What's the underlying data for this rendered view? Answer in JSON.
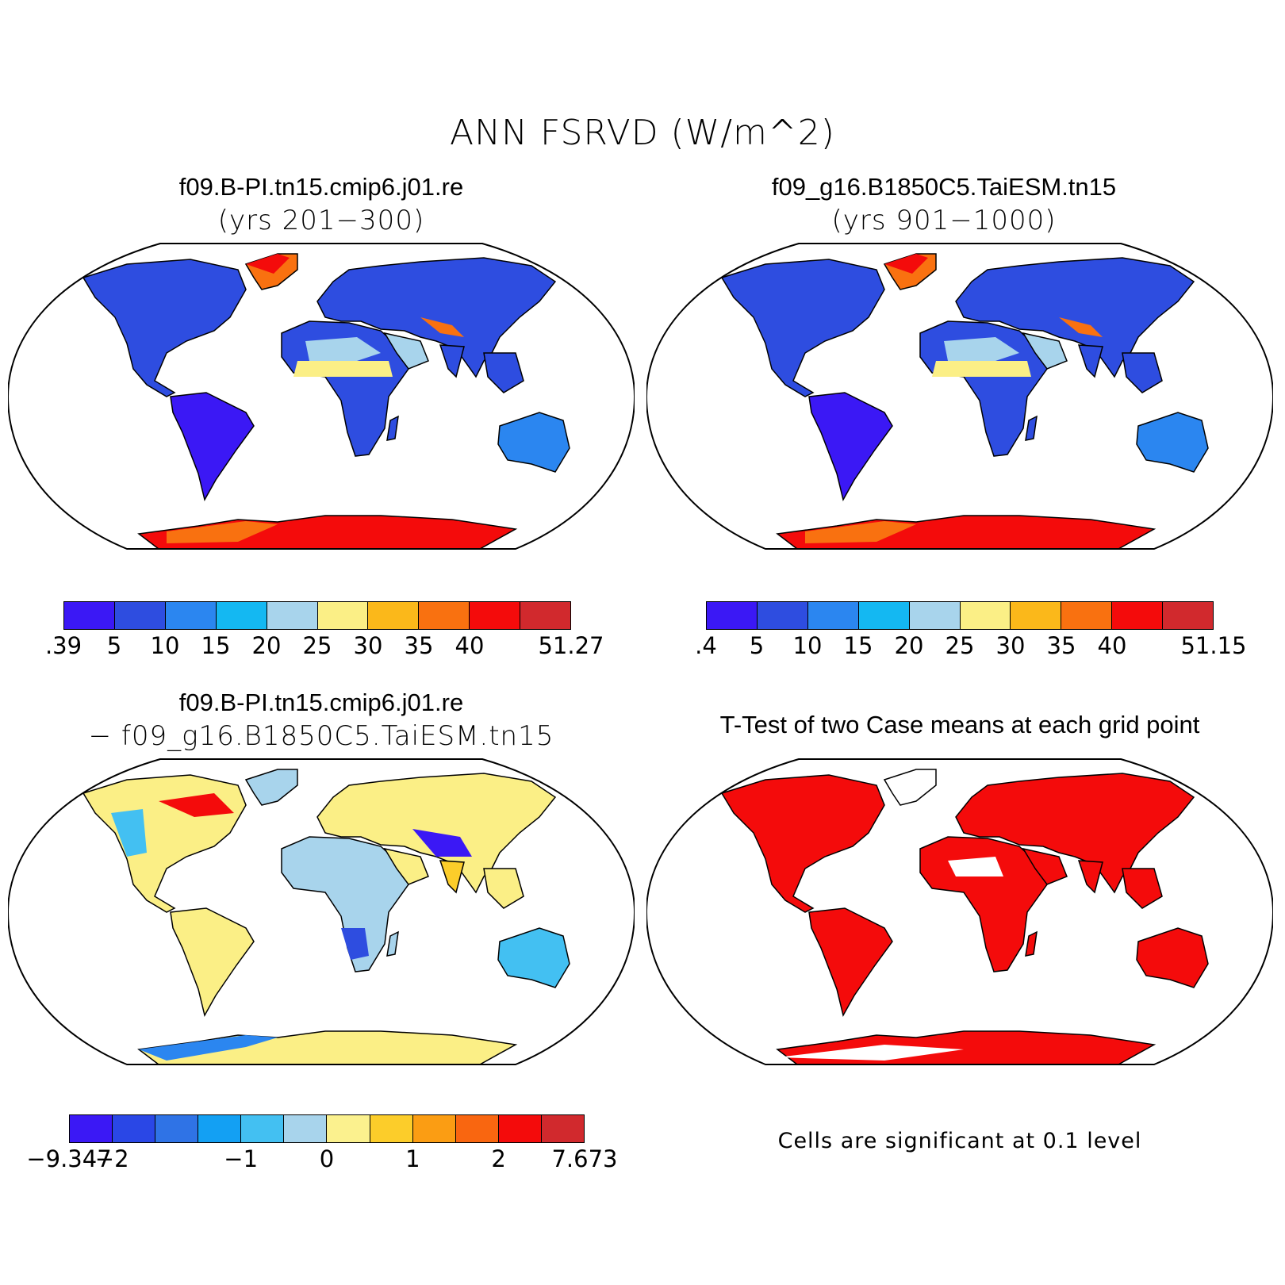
{
  "title": "ANN FSRVD (W/m^2)",
  "panels": [
    {
      "title": "f09.B-PI.tn15.cmip6.j01.re",
      "subtitle": "(yrs 201−300)"
    },
    {
      "title": "f09_g16.B1850C5.TaiESM.tn15",
      "subtitle": "(yrs 901−1000)"
    },
    {
      "title": "f09.B-PI.tn15.cmip6.j01.re",
      "subtitle": "− f09_g16.B1850C5.TaiESM.tn15"
    },
    {
      "title": "T-Test of two Case means at each grid point",
      "subtitle": ""
    }
  ],
  "note": "Cells are significant at 0.1 level",
  "colorbars": {
    "abs_colors": [
      "#3b18f5",
      "#2e4de0",
      "#2b86f0",
      "#14b8f2",
      "#a8d4ec",
      "#fbef86",
      "#fbb81a",
      "#f97110",
      "#f40b0b",
      "#d1292d"
    ],
    "diff_colors": [
      "#3b18f5",
      "#2a47e6",
      "#2f73e6",
      "#13a0f3",
      "#43c0f2",
      "#a8d4ec",
      "#fbf18e",
      "#fccd2a",
      "#fb9d13",
      "#f96610",
      "#f40b0b",
      "#d1292d"
    ],
    "case1_ticks": [
      ".39",
      "5",
      "10",
      "15",
      "20",
      "25",
      "30",
      "35",
      "40",
      "51.27"
    ],
    "case2_ticks": [
      ".4",
      "5",
      "10",
      "15",
      "20",
      "25",
      "30",
      "35",
      "40",
      "51.15"
    ],
    "diff_ticks": [
      "−9.347",
      "−2",
      "−1",
      "0",
      "1",
      "2",
      "7.673"
    ]
  },
  "legend_colors": {
    "significant": "#f40b0b"
  }
}
